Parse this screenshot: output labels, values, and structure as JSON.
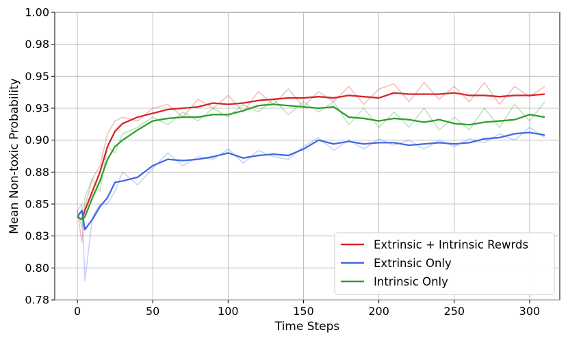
{
  "chart_data": {
    "type": "line",
    "title": "",
    "xlabel": "Time Steps",
    "ylabel": "Mean Non-toxic Probability",
    "xlim": [
      -15,
      320
    ],
    "ylim": [
      0.775,
      1.0
    ],
    "xticks": [
      0,
      50,
      100,
      150,
      200,
      250,
      300
    ],
    "yticks": [
      0.775,
      0.8,
      0.825,
      0.85,
      0.875,
      0.9,
      0.925,
      0.95,
      0.975,
      1.0
    ],
    "ytick_labels": [
      "0.78",
      "0.80",
      "0.83",
      "0.85",
      "0.88",
      "0.90",
      "0.93",
      "0.95",
      "0.98",
      "1.00"
    ],
    "grid": true,
    "legend_position": "lower-right",
    "series": [
      {
        "name": "Extrinsic + Intrinsic Rewrds",
        "color": "#d62728",
        "x": [
          0,
          3,
          5,
          10,
          15,
          20,
          25,
          30,
          40,
          50,
          60,
          70,
          80,
          90,
          100,
          110,
          120,
          130,
          140,
          150,
          160,
          170,
          180,
          190,
          200,
          210,
          220,
          230,
          240,
          250,
          260,
          270,
          280,
          290,
          300,
          310
        ],
        "smoothed": [
          0.84,
          0.838,
          0.845,
          0.86,
          0.875,
          0.895,
          0.907,
          0.913,
          0.918,
          0.921,
          0.924,
          0.925,
          0.926,
          0.929,
          0.928,
          0.929,
          0.931,
          0.932,
          0.933,
          0.933,
          0.934,
          0.933,
          0.935,
          0.934,
          0.933,
          0.937,
          0.936,
          0.936,
          0.936,
          0.937,
          0.935,
          0.935,
          0.934,
          0.935,
          0.935,
          0.936
        ],
        "raw": [
          0.845,
          0.82,
          0.848,
          0.87,
          0.88,
          0.905,
          0.915,
          0.918,
          0.915,
          0.925,
          0.928,
          0.918,
          0.932,
          0.925,
          0.935,
          0.922,
          0.938,
          0.928,
          0.94,
          0.926,
          0.938,
          0.93,
          0.942,
          0.928,
          0.94,
          0.944,
          0.93,
          0.945,
          0.932,
          0.942,
          0.93,
          0.945,
          0.928,
          0.942,
          0.934,
          0.942
        ]
      },
      {
        "name": "Extrinsic Only",
        "color": "#4169e1",
        "x": [
          0,
          3,
          5,
          10,
          15,
          20,
          25,
          30,
          40,
          50,
          60,
          70,
          80,
          90,
          100,
          110,
          120,
          130,
          140,
          150,
          160,
          170,
          180,
          190,
          200,
          210,
          220,
          230,
          240,
          250,
          260,
          270,
          280,
          290,
          300,
          310
        ],
        "smoothed": [
          0.84,
          0.845,
          0.83,
          0.838,
          0.848,
          0.855,
          0.867,
          0.868,
          0.871,
          0.88,
          0.885,
          0.884,
          0.885,
          0.887,
          0.89,
          0.886,
          0.888,
          0.889,
          0.888,
          0.893,
          0.9,
          0.897,
          0.899,
          0.897,
          0.898,
          0.898,
          0.896,
          0.897,
          0.898,
          0.897,
          0.898,
          0.901,
          0.902,
          0.905,
          0.906,
          0.904
        ],
        "raw": [
          0.845,
          0.85,
          0.79,
          0.84,
          0.85,
          0.85,
          0.86,
          0.875,
          0.865,
          0.878,
          0.89,
          0.88,
          0.887,
          0.885,
          0.893,
          0.882,
          0.892,
          0.887,
          0.885,
          0.895,
          0.902,
          0.892,
          0.9,
          0.893,
          0.901,
          0.896,
          0.9,
          0.893,
          0.9,
          0.895,
          0.901,
          0.898,
          0.905,
          0.9,
          0.91,
          0.902
        ]
      },
      {
        "name": "Intrinsic Only",
        "color": "#2ca02c",
        "x": [
          0,
          3,
          5,
          10,
          15,
          20,
          25,
          30,
          40,
          50,
          60,
          70,
          80,
          90,
          100,
          110,
          120,
          130,
          140,
          150,
          160,
          170,
          180,
          190,
          200,
          210,
          220,
          230,
          240,
          250,
          260,
          270,
          280,
          290,
          300,
          310
        ],
        "smoothed": [
          0.84,
          0.838,
          0.84,
          0.855,
          0.868,
          0.885,
          0.895,
          0.9,
          0.908,
          0.915,
          0.917,
          0.918,
          0.918,
          0.92,
          0.92,
          0.923,
          0.927,
          0.928,
          0.927,
          0.926,
          0.925,
          0.926,
          0.918,
          0.917,
          0.915,
          0.917,
          0.916,
          0.914,
          0.916,
          0.913,
          0.912,
          0.914,
          0.915,
          0.916,
          0.92,
          0.918
        ],
        "raw": [
          0.845,
          0.832,
          0.855,
          0.87,
          0.86,
          0.895,
          0.89,
          0.905,
          0.91,
          0.918,
          0.912,
          0.922,
          0.915,
          0.925,
          0.918,
          0.928,
          0.922,
          0.932,
          0.92,
          0.93,
          0.922,
          0.93,
          0.912,
          0.925,
          0.91,
          0.922,
          0.91,
          0.925,
          0.908,
          0.918,
          0.908,
          0.925,
          0.91,
          0.928,
          0.915,
          0.93
        ]
      }
    ]
  }
}
